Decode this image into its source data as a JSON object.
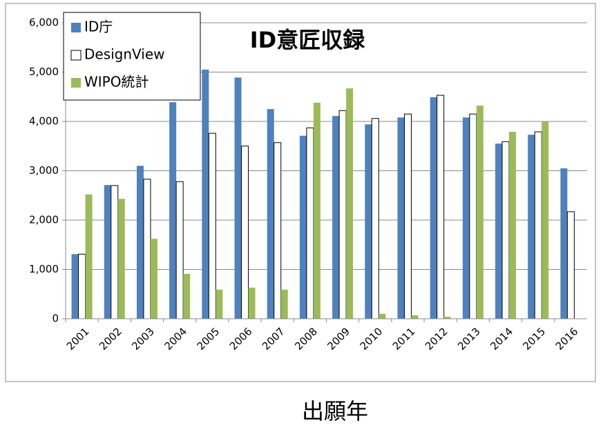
{
  "chart_data": {
    "type": "bar",
    "title": "ID意匠収録",
    "xlabel": "出願年",
    "categories": [
      "2001",
      "2002",
      "2003",
      "2004",
      "2005",
      "2006",
      "2007",
      "2008",
      "2009",
      "2010",
      "2011",
      "2012",
      "2013",
      "2014",
      "2015",
      "2016"
    ],
    "series": [
      {
        "name": "ID庁",
        "color": "#4f81bd",
        "values": [
          1310,
          2710,
          3100,
          4390,
          5050,
          4890,
          4250,
          3710,
          4110,
          3940,
          4080,
          4490,
          4080,
          3550,
          3730,
          3050
        ]
      },
      {
        "name": "DesignView",
        "color": "#ffffff",
        "values": [
          1310,
          2700,
          2830,
          2780,
          3760,
          3500,
          3570,
          3870,
          4220,
          4060,
          4150,
          4530,
          4150,
          3590,
          3790,
          2170
        ]
      },
      {
        "name": "WIPO統計",
        "color": "#9bbb59",
        "values": [
          2520,
          2430,
          1620,
          910,
          590,
          630,
          590,
          4380,
          4670,
          100,
          70,
          40,
          4320,
          3790,
          4000,
          null
        ]
      }
    ],
    "ylim": [
      0,
      6000
    ],
    "yticks": [
      0,
      {
        "value": 1000,
        "label": "1,000"
      },
      {
        "value": 2000,
        "label": "2,000"
      },
      {
        "value": 3000,
        "label": "3,000"
      },
      {
        "value": 4000,
        "label": "4,000"
      },
      {
        "value": 5000,
        "label": "5,000"
      },
      {
        "value": 6000,
        "label": "6,000"
      }
    ],
    "grid": true,
    "legend": "upper left"
  }
}
